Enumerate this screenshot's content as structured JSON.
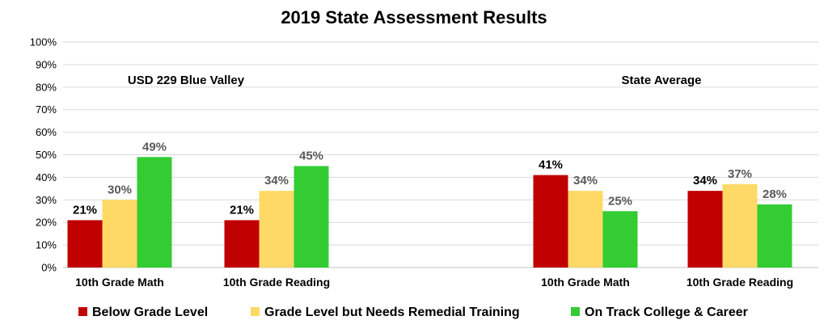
{
  "chart_data": {
    "type": "bar",
    "title": "2019 State Assessment Results",
    "group_labels": [
      "USD 229 Blue Valley",
      "State Average"
    ],
    "categories": [
      "10th Grade Math",
      "10th Grade Reading",
      "10th Grade Math",
      "10th Grade Reading"
    ],
    "category_groups": [
      0,
      0,
      1,
      1
    ],
    "series": [
      {
        "name": "Below Grade Level",
        "color": "#c00000",
        "values": [
          21,
          21,
          41,
          34
        ],
        "value_labels": [
          "21%",
          "21%",
          "41%",
          "34%"
        ]
      },
      {
        "name": "Grade Level but Needs Remedial Training",
        "color": "#ffd966",
        "values": [
          30,
          34,
          34,
          37
        ],
        "value_labels": [
          "30%",
          "34%",
          "34%",
          "37%"
        ]
      },
      {
        "name": "On Track College & Career",
        "color": "#33cc33",
        "values": [
          49,
          45,
          25,
          28
        ],
        "value_labels": [
          "49%",
          "45%",
          "25%",
          "28%"
        ]
      }
    ],
    "value_label_colors": [
      "#000000",
      "#595959",
      "#595959"
    ],
    "ylim": [
      0,
      100
    ],
    "y_ticks": [
      "0%",
      "10%",
      "20%",
      "30%",
      "40%",
      "50%",
      "60%",
      "70%",
      "80%",
      "90%",
      "100%"
    ],
    "grid": true,
    "legend_position": "bottom"
  }
}
